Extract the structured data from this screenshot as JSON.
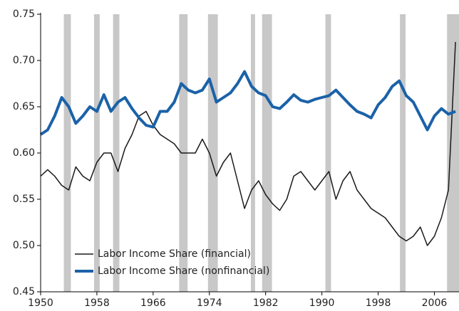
{
  "chart_data": {
    "type": "line",
    "x": [
      1950,
      1951,
      1952,
      1953,
      1954,
      1955,
      1956,
      1957,
      1958,
      1959,
      1960,
      1961,
      1962,
      1963,
      1964,
      1965,
      1966,
      1967,
      1968,
      1969,
      1970,
      1971,
      1972,
      1973,
      1974,
      1975,
      1976,
      1977,
      1978,
      1979,
      1980,
      1981,
      1982,
      1983,
      1984,
      1985,
      1986,
      1987,
      1988,
      1989,
      1990,
      1991,
      1992,
      1993,
      1994,
      1995,
      1996,
      1997,
      1998,
      1999,
      2000,
      2001,
      2002,
      2003,
      2004,
      2005,
      2006,
      2007,
      2008,
      2009
    ],
    "series": [
      {
        "name": "Labor Income Share (financial)",
        "color": "#1a1a1a",
        "width": 1.5,
        "values": [
          0.575,
          0.582,
          0.575,
          0.565,
          0.56,
          0.585,
          0.575,
          0.57,
          0.59,
          0.6,
          0.6,
          0.58,
          0.605,
          0.62,
          0.64,
          0.645,
          0.63,
          0.62,
          0.615,
          0.61,
          0.6,
          0.6,
          0.6,
          0.615,
          0.6,
          0.575,
          0.59,
          0.6,
          0.57,
          0.54,
          0.56,
          0.57,
          0.555,
          0.545,
          0.538,
          0.55,
          0.575,
          0.58,
          0.57,
          0.56,
          0.57,
          0.58,
          0.55,
          0.57,
          0.58,
          0.56,
          0.55,
          0.54,
          0.535,
          0.53,
          0.52,
          0.51,
          0.505,
          0.51,
          0.52,
          0.5,
          0.51,
          0.53,
          0.56,
          0.72
        ]
      },
      {
        "name": "Labor Income Share (nonfinancial)",
        "color": "#1b62a8",
        "width": 4,
        "values": [
          0.62,
          0.625,
          0.64,
          0.66,
          0.65,
          0.632,
          0.64,
          0.65,
          0.645,
          0.663,
          0.645,
          0.655,
          0.66,
          0.648,
          0.638,
          0.63,
          0.628,
          0.645,
          0.645,
          0.655,
          0.675,
          0.668,
          0.665,
          0.668,
          0.68,
          0.655,
          0.66,
          0.665,
          0.675,
          0.688,
          0.672,
          0.665,
          0.662,
          0.65,
          0.648,
          0.655,
          0.663,
          0.657,
          0.655,
          0.658,
          0.66,
          0.662,
          0.668,
          0.66,
          0.652,
          0.645,
          0.642,
          0.638,
          0.652,
          0.66,
          0.672,
          0.678,
          0.662,
          0.655,
          0.64,
          0.625,
          0.64,
          0.648,
          0.642,
          0.645
        ]
      }
    ],
    "shaded_periods": [
      [
        1953.3,
        1954.3
      ],
      [
        1957.6,
        1958.4
      ],
      [
        1960.3,
        1961.2
      ],
      [
        1969.7,
        1970.9
      ],
      [
        1973.8,
        1975.2
      ],
      [
        1979.9,
        1980.5
      ],
      [
        1981.5,
        1982.9
      ],
      [
        1990.5,
        1991.3
      ],
      [
        2001.1,
        2001.9
      ],
      [
        2007.8,
        2009.5
      ]
    ],
    "shade_color": "#c8c8c8",
    "xlim": [
      1950,
      2009.5
    ],
    "ylim": [
      0.45,
      0.75
    ],
    "xticks": [
      1950,
      1958,
      1966,
      1974,
      1982,
      1990,
      1998,
      2006
    ],
    "yticks": [
      0.45,
      {
        "value": 0.5,
        "label": "0.50"
      },
      0.55,
      {
        "value": 0.6,
        "label": "0.60"
      },
      0.65,
      {
        "value": 0.7,
        "label": "0.70"
      },
      0.75
    ],
    "legend": "lower left"
  }
}
